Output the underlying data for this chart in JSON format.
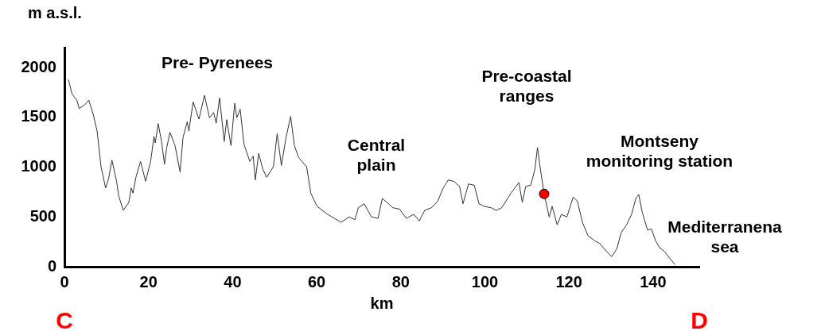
{
  "chart_data": {
    "type": "line",
    "xlabel": "km",
    "ylabel": "m a.s.l.",
    "xlim": [
      0,
      151
    ],
    "ylim": [
      0,
      2200
    ],
    "xticks": [
      0,
      20,
      40,
      60,
      80,
      100,
      120,
      140
    ],
    "yticks": [
      0,
      500,
      1000,
      1500,
      2000
    ],
    "marker": "none",
    "series": [
      {
        "color": "#333333",
        "x": [
          0.95,
          1.8,
          3.0,
          3.5,
          4.9,
          5.8,
          6.9,
          7.8,
          8.7,
          9.8,
          10.5,
          11.3,
          12.4,
          12.9,
          14.0,
          15.3,
          15.9,
          16.3,
          17.0,
          18.1,
          19.3,
          20.5,
          21.3,
          21.6,
          22.3,
          23.1,
          23.8,
          24.3,
          25.1,
          26.3,
          27.5,
          28.2,
          29.2,
          29.6,
          30.6,
          32.0,
          33.3,
          34.5,
          35.5,
          36.1,
          36.9,
          38.0,
          38.6,
          39.6,
          40.5,
          41.0,
          41.8,
          42.7,
          44.1,
          44.9,
          45.4,
          46.2,
          47.2,
          48.1,
          49.7,
          50.6,
          51.6,
          52.7,
          53.8,
          54.7,
          55.7,
          57.6,
          58.6,
          60.1,
          62.6,
          65.8,
          67.7,
          69.1,
          69.9,
          71.3,
          73.0,
          74.6,
          75.6,
          77.1,
          78.1,
          79.7,
          81.3,
          83.1,
          84.4,
          85.7,
          87.3,
          88.8,
          90.1,
          91.3,
          92.6,
          94.0,
          94.8,
          96.1,
          97.5,
          98.6,
          99.9,
          101.5,
          102.7,
          104.0,
          106.2,
          108.1,
          108.9,
          109.7,
          110.9,
          111.9,
          112.5,
          113.4,
          114.1,
          115.3,
          116.0,
          117.2,
          118.2,
          119.5,
          121.0,
          122.0,
          123.2,
          124.5,
          126.1,
          127.3,
          129.2,
          130.2,
          131.4,
          132.4,
          133.7,
          134.9,
          135.9,
          136.6,
          137.4,
          138.7,
          139.6,
          140.6,
          141.5,
          142.7,
          143.9,
          145.2
        ],
        "values": [
          1880,
          1735,
          1668,
          1588,
          1628,
          1673,
          1522,
          1355,
          1004,
          791,
          884,
          1070,
          858,
          712,
          566,
          645,
          791,
          739,
          898,
          1057,
          858,
          1057,
          1309,
          1243,
          1437,
          1257,
          1030,
          1190,
          1349,
          1217,
          951,
          1296,
          1456,
          1363,
          1655,
          1482,
          1721,
          1496,
          1548,
          1442,
          1695,
          1257,
          1477,
          1217,
          1641,
          1496,
          1583,
          1230,
          1057,
          1110,
          871,
          1137,
          978,
          898,
          1004,
          1336,
          1017,
          1296,
          1509,
          1216,
          1097,
          1004,
          738,
          606,
          526,
          446,
          500,
          473,
          592,
          632,
          500,
          486,
          685,
          632,
          592,
          579,
          486,
          526,
          460,
          566,
          592,
          659,
          791,
          871,
          858,
          805,
          632,
          831,
          818,
          632,
          606,
          592,
          566,
          592,
          738,
          845,
          645,
          805,
          818,
          977,
          1195,
          924,
          731,
          499,
          606,
          420,
          526,
          499,
          699,
          659,
          446,
          313,
          261,
          234,
          141,
          101,
          181,
          340,
          420,
          526,
          685,
          725,
          552,
          367,
          380,
          261,
          194,
          154,
          88,
          21
        ]
      },
      {
        "type": "scatter",
        "color": "#ff0000",
        "marker": "circle",
        "x": [
          114.1
        ],
        "values": [
          731
        ]
      }
    ],
    "annotations": [
      "Pre- Pyrenees",
      "Pre-coastal\nranges",
      "Central\nplain",
      "Montseny\nmonitoring station",
      "Mediterranena\nsea",
      "C",
      "D"
    ]
  }
}
